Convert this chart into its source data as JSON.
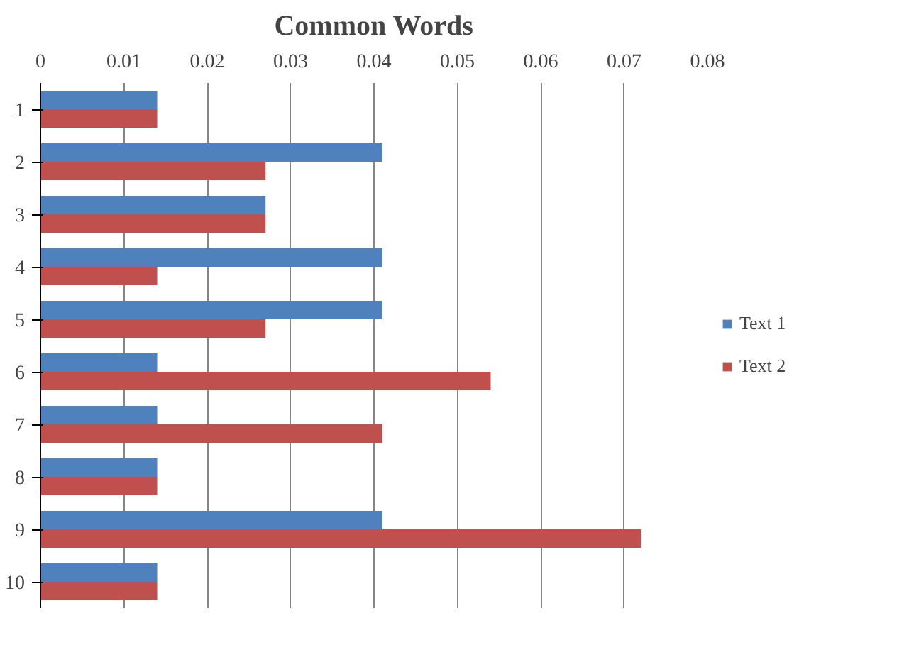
{
  "chart_data": {
    "type": "bar",
    "orientation": "horizontal",
    "title": "Common Words",
    "categories": [
      "1",
      "2",
      "3",
      "4",
      "5",
      "6",
      "7",
      "8",
      "9",
      "10"
    ],
    "series": [
      {
        "name": "Text 1",
        "color": "#4f81bd",
        "values": [
          0.014,
          0.041,
          0.027,
          0.041,
          0.041,
          0.014,
          0.014,
          0.014,
          0.041,
          0.014
        ]
      },
      {
        "name": "Text 2",
        "color": "#c0504d",
        "values": [
          0.014,
          0.027,
          0.027,
          0.014,
          0.027,
          0.054,
          0.041,
          0.014,
          0.072,
          0.014
        ]
      }
    ],
    "xlim": [
      0,
      0.08
    ],
    "xticks": [
      0,
      0.01,
      0.02,
      0.03,
      0.04,
      0.05,
      0.06,
      0.07,
      0.08
    ],
    "grid": "x",
    "legend": "right"
  }
}
